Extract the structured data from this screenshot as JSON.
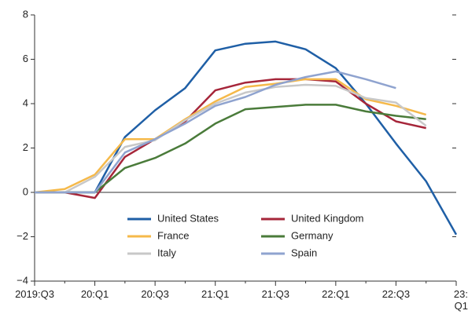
{
  "chart_data": {
    "type": "line",
    "categories": [
      "2019:Q3",
      null,
      "20:Q1",
      null,
      "20:Q3",
      null,
      "21:Q1",
      null,
      "21:Q3",
      null,
      "22:Q1",
      null,
      "22:Q3",
      null,
      "23:\nQ1"
    ],
    "ylim": [
      -4,
      8
    ],
    "yticks": [
      {
        "value": -4,
        "label": "−4"
      },
      {
        "value": -2,
        "label": "−2"
      },
      0,
      2,
      4,
      6,
      8
    ],
    "series": [
      {
        "name": "United States",
        "color": "#1f5fa6",
        "values": [
          0,
          0,
          0,
          2.5,
          3.7,
          4.7,
          6.4,
          6.7,
          6.8,
          6.45,
          5.6,
          4.0,
          2.2,
          0.5,
          -1.9
        ]
      },
      {
        "name": "United Kingdom",
        "color": "#a6263a",
        "values": [
          0,
          0,
          -0.25,
          1.6,
          2.4,
          3.2,
          4.6,
          4.95,
          5.1,
          5.1,
          5.0,
          4.0,
          3.2,
          2.9,
          null
        ]
      },
      {
        "name": "France",
        "color": "#f5b94a",
        "values": [
          0,
          0.15,
          0.8,
          2.4,
          2.4,
          3.3,
          4.1,
          4.75,
          4.9,
          5.1,
          5.1,
          4.2,
          3.9,
          3.5,
          null
        ]
      },
      {
        "name": "Germany",
        "color": "#4a7b3a",
        "values": [
          0,
          0,
          0,
          1.1,
          1.55,
          2.2,
          3.1,
          3.75,
          3.85,
          3.95,
          3.95,
          3.65,
          3.45,
          3.3,
          null
        ]
      },
      {
        "name": "Italy",
        "color": "#c8c8c8",
        "values": [
          0,
          0,
          0.7,
          2.05,
          2.35,
          3.25,
          4.0,
          4.5,
          4.75,
          4.85,
          4.8,
          4.25,
          4.05,
          3.0,
          null
        ]
      },
      {
        "name": "Spain",
        "color": "#8fa3cf",
        "values": [
          0,
          0,
          0,
          1.8,
          2.4,
          3.1,
          3.9,
          4.3,
          4.85,
          5.2,
          5.45,
          5.1,
          4.7,
          null,
          null
        ]
      }
    ]
  }
}
